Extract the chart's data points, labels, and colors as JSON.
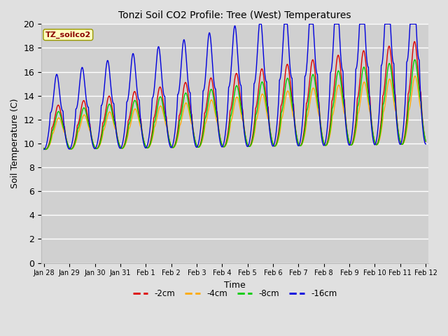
{
  "title": "Tonzi Soil CO2 Profile: Tree (West) Temperatures",
  "xlabel": "Time",
  "ylabel": "Soil Temperature (C)",
  "ylim": [
    0,
    20
  ],
  "yticks": [
    0,
    2,
    4,
    6,
    8,
    10,
    12,
    14,
    16,
    18,
    20
  ],
  "legend_label": "TZ_soilco2",
  "series_labels": [
    "-2cm",
    "-4cm",
    "-8cm",
    "-16cm"
  ],
  "series_colors": [
    "#dd0000",
    "#ffaa00",
    "#00cc00",
    "#0000dd"
  ],
  "fig_bg_color": "#e0e0e0",
  "plot_bg_color": "#d0d0d0",
  "grid_color": "#ffffff",
  "tick_positions": [
    0,
    1,
    2,
    3,
    4,
    5,
    6,
    7,
    8,
    9,
    10,
    11,
    12,
    13,
    14,
    15
  ],
  "tick_labels": [
    "Jan 28",
    "Jan 29",
    "Jan 30",
    "Jan 31",
    "Feb 1",
    "Feb 2",
    "Feb 3",
    "Feb 4",
    "Feb 5",
    "Feb 6",
    "Feb 7",
    "Feb 8",
    "Feb 9",
    "Feb 10",
    "Feb 11",
    "Feb 12"
  ]
}
